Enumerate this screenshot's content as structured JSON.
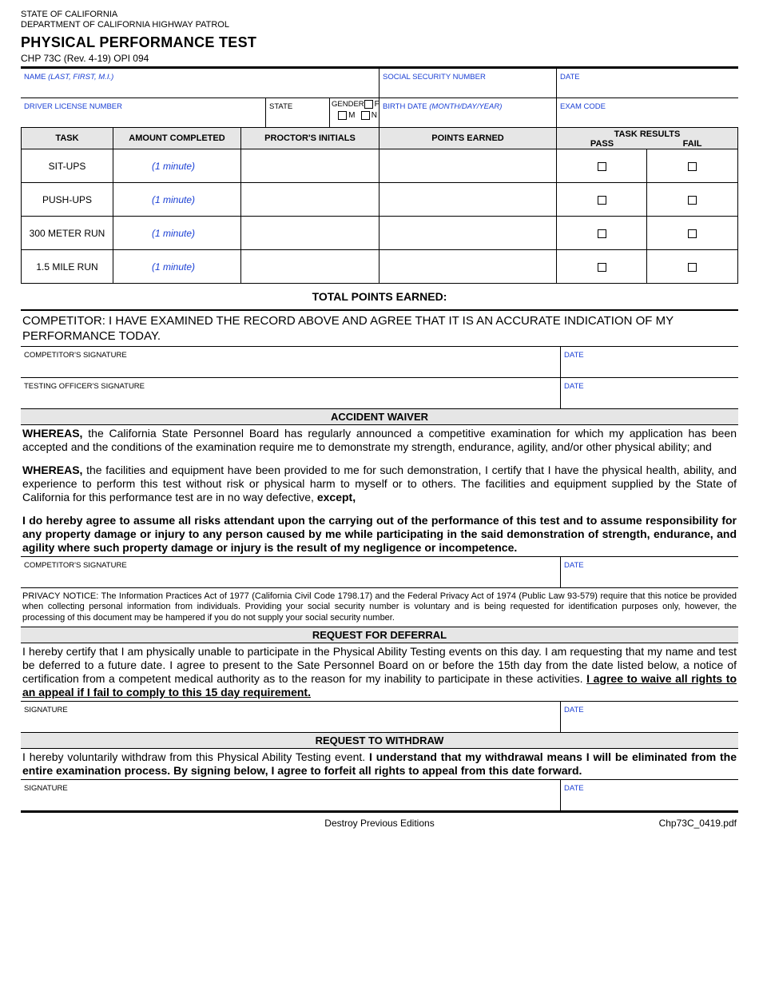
{
  "header": {
    "state_line": "STATE OF CALIFORNIA",
    "dept_line": "DEPARTMENT OF CALIFORNIA HIGHWAY PATROL",
    "title": "PHYSICAL PERFORMANCE TEST",
    "form_code": "CHP 73C (Rev. 4-19) OPI 094"
  },
  "fields_row1": {
    "name_label": "NAME ",
    "name_italic": "(LAST, FIRST, M.I.)",
    "ssn_label": "SOCIAL SECURITY NUMBER",
    "date_label": "DATE"
  },
  "fields_row2": {
    "dl_label": "DRIVER LICENSE NUMBER",
    "state_label": "STATE",
    "gender_label": "GENDER",
    "gender_f": "F",
    "gender_m": "M",
    "gender_n": "N",
    "birth_label": "BIRTH DATE ",
    "birth_italic": "(MONTH/DAY/YEAR)",
    "exam_label": "EXAM CODE"
  },
  "task_table": {
    "headers": {
      "task": "TASK",
      "amount": "AMOUNT COMPLETED",
      "proctor": "PROCTOR'S INITIALS",
      "points": "POINTS EARNED",
      "results": "TASK RESULTS",
      "pass": "PASS",
      "fail": "FAIL"
    },
    "rows": [
      {
        "task": "SIT-UPS",
        "minute": "(1 minute)"
      },
      {
        "task": "PUSH-UPS",
        "minute": "(1 minute)"
      },
      {
        "task": "300 METER RUN",
        "minute": "(1 minute)"
      },
      {
        "task": "1.5 MILE RUN",
        "minute": "(1 minute)"
      }
    ],
    "total_label": "TOTAL POINTS EARNED:"
  },
  "competitor_statement": "COMPETITOR:  I HAVE EXAMINED THE RECORD ABOVE AND AGREE THAT IT IS AN ACCURATE INDICATION OF MY PERFORMANCE TODAY.",
  "sig1": {
    "label": "COMPETITOR'S SIGNATURE",
    "date": "DATE"
  },
  "sig2": {
    "label": "TESTING OFFICER'S SIGNATURE",
    "date": "DATE"
  },
  "waiver": {
    "header": "ACCIDENT WAIVER",
    "p1_bold": "WHEREAS,",
    "p1": " the California State Personnel Board has regularly announced a competitive examination for which my application has been accepted and the conditions of the examination require me to demonstrate my strength, endurance, agility, and/or other physical ability; and",
    "p2_bold": "WHEREAS,",
    "p2": " the facilities and equipment have been provided to me for such demonstration, I certify that I have the physical health, ability, and experience to perform this test without risk or physical harm to myself or to others.  The facilities and equipment supplied by the State of California for this performance test are in no way defective, ",
    "p2_end": "except,",
    "p3": "I do hereby agree to assume all risks attendant upon the carrying out of the performance of this test and to assume responsibility for any property damage or injury to any person caused by me while participating in the said demonstration of strength, endurance, and agility where such property damage or injury is the result of my negligence or incompetence.",
    "sig_label": "COMPETITOR'S SIGNATURE",
    "sig_date": "DATE",
    "privacy": "PRIVACY NOTICE: The Information Practices Act of 1977 (California Civil Code 1798.17) and the Federal Privacy Act of 1974 (Public Law 93-579) require that this notice be provided when collecting personal information from individuals. Providing your social security number is voluntary and is being requested for identification purposes only, however, the processing of this document may be hampered if you do not supply your social security number."
  },
  "deferral": {
    "header": "REQUEST FOR DEFERRAL",
    "p1": "I hereby certify that I am physically unable to participate in the Physical Ability Testing events on this day.  I am requesting that my name and test be deferred to a future date.  I agree to present to the Sate Personnel Board on or before the 15th day from the date listed below, a notice of certification from a competent medical authority as to the reason for my inability to participate in these activities.  ",
    "p1_bold_underline": "I agree to waive all rights to an appeal if I fail to comply to this 15 day requirement.",
    "sig_label": "SIGNATURE",
    "sig_date": "DATE"
  },
  "withdraw": {
    "header": "REQUEST TO WITHDRAW",
    "p1": "I hereby voluntarily withdraw from this Physical Ability Testing event.  ",
    "p1_bold": "I understand that my withdrawal means I will be eliminated from the entire examination process.  By signing below, I agree to forfeit all rights to appeal from this date forward.",
    "sig_label": "SIGNATURE",
    "sig_date": "DATE"
  },
  "footer": {
    "center": "Destroy Previous Editions",
    "right": "Chp73C_0419.pdf"
  },
  "colors": {
    "field_label": "#1a3fd4",
    "header_bg": "#e6e6e6"
  }
}
